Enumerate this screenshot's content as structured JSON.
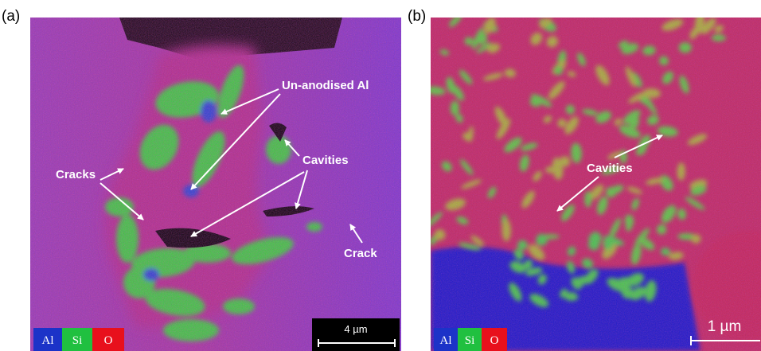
{
  "panels": [
    {
      "label": "(a)",
      "annotations": [
        "Un-anodised Al",
        "Cavities",
        "Cracks",
        "Crack"
      ],
      "legend": [
        "Al",
        "Si",
        "O"
      ],
      "scale_bar": "4 µm"
    },
    {
      "label": "(b)",
      "annotations": [
        "Cavities"
      ],
      "legend": [
        "Al",
        "Si",
        "O"
      ],
      "scale_bar": "1 µm"
    }
  ]
}
